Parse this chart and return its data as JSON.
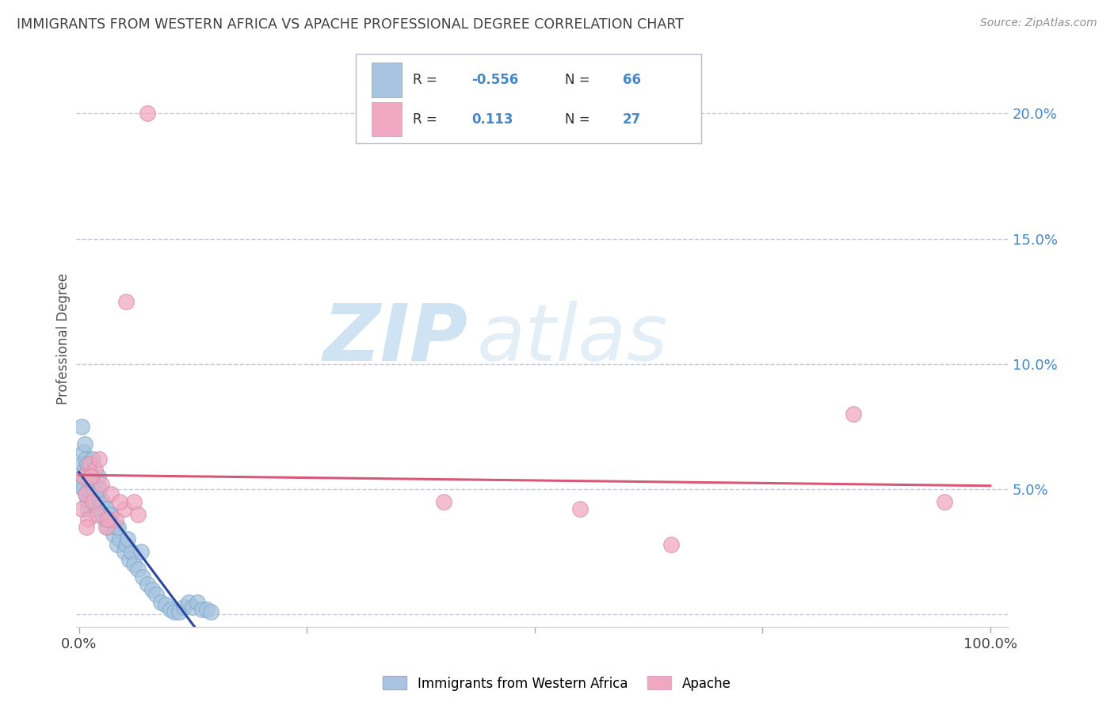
{
  "title": "IMMIGRANTS FROM WESTERN AFRICA VS APACHE PROFESSIONAL DEGREE CORRELATION CHART",
  "source": "Source: ZipAtlas.com",
  "ylabel": "Professional Degree",
  "R1": -0.556,
  "N1": 66,
  "R2": 0.113,
  "N2": 27,
  "blue_color": "#a8c4e0",
  "blue_edge_color": "#7aaac8",
  "pink_color": "#f0a8c0",
  "pink_edge_color": "#d888a8",
  "blue_line_color": "#2848a0",
  "pink_line_color": "#d85878",
  "bg_color": "#ffffff",
  "grid_color": "#c8c8d8",
  "title_color": "#404040",
  "legend1_label": "Immigrants from Western Africa",
  "legend2_label": "Apache",
  "watermark_zip": "ZIP",
  "watermark_atlas": "atlas",
  "blue_x": [
    0.2,
    0.3,
    0.4,
    0.5,
    0.5,
    0.6,
    0.7,
    0.7,
    0.8,
    0.9,
    1.0,
    1.0,
    1.1,
    1.2,
    1.3,
    1.4,
    1.5,
    1.6,
    1.7,
    1.8,
    2.0,
    2.1,
    2.2,
    2.4,
    2.5,
    2.6,
    2.8,
    3.0,
    3.2,
    3.5,
    3.8,
    4.0,
    4.2,
    4.5,
    5.0,
    5.2,
    5.5,
    5.8,
    6.0,
    6.5,
    7.0,
    7.5,
    8.0,
    8.5,
    9.0,
    9.5,
    10.0,
    10.5,
    11.0,
    11.5,
    12.0,
    12.5,
    13.0,
    13.5,
    14.0,
    14.5,
    0.3,
    0.6,
    0.9,
    1.2,
    1.5,
    2.3,
    3.3,
    4.3,
    5.3,
    6.8
  ],
  "blue_y": [
    5.2,
    6.0,
    5.5,
    6.5,
    5.0,
    5.8,
    6.2,
    4.8,
    5.5,
    4.5,
    5.8,
    4.2,
    5.0,
    5.5,
    4.8,
    5.2,
    4.5,
    5.0,
    4.8,
    4.5,
    4.8,
    5.5,
    4.2,
    4.5,
    4.0,
    4.5,
    3.8,
    4.2,
    3.5,
    4.0,
    3.2,
    3.5,
    2.8,
    3.0,
    2.5,
    2.8,
    2.2,
    2.5,
    2.0,
    1.8,
    1.5,
    1.2,
    1.0,
    0.8,
    0.5,
    0.4,
    0.2,
    0.1,
    0.1,
    0.3,
    0.5,
    0.3,
    0.5,
    0.2,
    0.2,
    0.1,
    7.5,
    6.8,
    6.0,
    5.5,
    6.2,
    5.0,
    4.0,
    3.5,
    3.0,
    2.5
  ],
  "pink_x": [
    0.3,
    0.5,
    0.7,
    1.0,
    1.2,
    1.5,
    1.8,
    2.0,
    2.5,
    3.0,
    3.5,
    4.0,
    5.0,
    6.0,
    0.8,
    1.3,
    2.2,
    3.2,
    4.5,
    6.5,
    7.5,
    5.2,
    40.0,
    55.0,
    65.0,
    85.0,
    95.0
  ],
  "pink_y": [
    4.2,
    5.5,
    4.8,
    3.8,
    6.0,
    4.5,
    5.8,
    4.0,
    5.2,
    3.5,
    4.8,
    3.8,
    4.2,
    4.5,
    3.5,
    5.5,
    6.2,
    3.8,
    4.5,
    4.0,
    20.0,
    12.5,
    4.5,
    4.2,
    2.8,
    8.0,
    4.5
  ],
  "ytick_vals": [
    0,
    5,
    10,
    15,
    20
  ],
  "ytick_labels": [
    "",
    "5.0%",
    "10.0%",
    "15.0%",
    "20.0%"
  ],
  "xlim": [
    -0.3,
    102
  ],
  "ylim": [
    -0.5,
    22.5
  ]
}
